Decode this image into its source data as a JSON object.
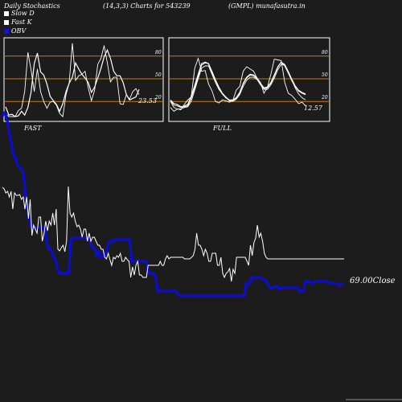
{
  "header": {
    "left": "Daily Stochastics",
    "params": "(14,3,3) Charts for 543239",
    "site": "(GMPL) munafasutra.in"
  },
  "legend": [
    {
      "label": "Slow  D",
      "color": "#ffffff"
    },
    {
      "label": "Fast K",
      "color": "#ffffff"
    },
    {
      "label": "OBV",
      "color": "#1010ee"
    }
  ],
  "colors": {
    "background": "#1c1c1c",
    "obv": "#0b0bdc",
    "close": "#ffffff",
    "band": "#c87a10"
  },
  "chart_data": [
    {
      "type": "line",
      "title": "FAST",
      "value_label": "23.53",
      "ylim": [
        0,
        100
      ],
      "levels": [
        80,
        50,
        20
      ],
      "series": [
        {
          "values": [
            13,
            2,
            3,
            0,
            1,
            7,
            2,
            12,
            32,
            70,
            84,
            59,
            55,
            43,
            27,
            21,
            16,
            7,
            17,
            33,
            44,
            52,
            71,
            63,
            56,
            51,
            45,
            32,
            39,
            51,
            64,
            79,
            88,
            77,
            60,
            54,
            54,
            45,
            29,
            22,
            24,
            26,
            36
          ]
        },
        {
          "values": [
            5,
            0,
            0,
            0,
            8,
            11,
            33,
            85,
            62,
            33,
            63,
            33,
            20,
            11,
            19,
            20,
            15,
            4,
            0,
            29,
            44,
            97,
            48,
            54,
            56,
            60,
            38,
            21,
            35,
            69,
            77,
            94,
            71,
            46,
            52,
            52,
            17,
            16,
            29,
            23,
            33,
            37,
            29
          ]
        }
      ]
    },
    {
      "type": "line",
      "title": "FULL",
      "value_label": "12.57",
      "ylim": [
        0,
        100
      ],
      "levels": [
        80,
        50,
        20
      ],
      "series": [
        {
          "values": [
            22,
            17,
            16,
            13,
            14,
            16,
            27,
            41,
            56,
            70,
            72,
            70,
            58,
            48,
            38,
            30,
            25,
            22,
            22,
            25,
            32,
            44,
            52,
            56,
            55,
            51,
            44,
            38,
            39,
            45,
            55,
            66,
            72,
            67,
            58,
            48,
            40,
            34,
            31,
            29
          ]
        },
        {
          "values": [
            21,
            15,
            14,
            12,
            13,
            14,
            24,
            38,
            53,
            68,
            71,
            70,
            60,
            49,
            39,
            31,
            26,
            22,
            21,
            24,
            31,
            43,
            51,
            55,
            54,
            50,
            43,
            37,
            38,
            44,
            54,
            65,
            72,
            69,
            60,
            50,
            41,
            35,
            32,
            30
          ]
        },
        {
          "values": [
            20,
            12,
            10,
            10,
            12,
            13,
            20,
            35,
            50,
            64,
            67,
            67,
            56,
            45,
            36,
            30,
            25,
            21,
            20,
            23,
            29,
            40,
            48,
            52,
            52,
            49,
            42,
            36,
            36,
            42,
            51,
            62,
            69,
            68,
            59,
            49,
            38,
            30,
            25,
            22
          ]
        },
        {
          "values": [
            12,
            7,
            10,
            9,
            16,
            22,
            26,
            64,
            77,
            60,
            61,
            43,
            34,
            20,
            18,
            22,
            21,
            19,
            21,
            35,
            40,
            60,
            66,
            63,
            60,
            51,
            45,
            31,
            39,
            56,
            76,
            75,
            74,
            45,
            31,
            28,
            23,
            17,
            19,
            14
          ]
        }
      ]
    },
    {
      "type": "line",
      "close_label": "69.00Close",
      "series": [
        {
          "name": "OBV",
          "values": [
            145,
            140,
            142,
            155,
            170,
            180,
            193,
            195,
            205,
            207,
            210,
            212,
            230,
            255,
            268,
            280,
            283,
            283,
            283,
            283,
            283,
            283,
            283,
            283,
            300,
            310,
            310,
            315,
            320,
            325,
            336,
            340,
            340,
            340,
            340,
            340,
            340,
            298,
            296,
            296,
            296,
            296,
            296,
            296,
            296,
            296,
            296,
            296,
            306,
            307,
            310,
            318,
            312,
            320,
            320,
            315,
            316,
            306,
            300,
            300,
            300,
            298,
            298,
            298,
            298,
            298,
            298,
            298,
            298,
            298,
            325,
            325,
            325,
            325,
            325,
            325,
            325,
            325,
            325,
            340,
            340,
            340,
            340,
            345,
            362,
            362,
            362,
            362,
            362,
            362,
            362,
            362,
            362,
            362,
            362,
            365,
            368,
            368,
            368,
            368,
            368,
            368,
            368,
            368,
            368,
            368,
            368,
            368,
            368,
            368,
            368,
            368,
            368,
            368,
            368,
            368,
            368,
            368,
            368,
            368,
            368,
            368,
            368,
            368,
            368,
            368,
            368,
            368,
            368,
            368,
            368,
            368,
            352,
            352,
            352,
            345,
            345,
            345,
            345,
            345,
            345,
            348,
            348,
            350,
            355,
            358,
            358,
            358,
            356,
            356,
            360,
            358,
            358,
            358,
            358,
            358,
            358,
            358,
            358,
            358,
            358,
            363,
            362,
            362,
            350,
            350,
            350,
            352,
            352,
            350,
            350,
            350,
            350,
            350,
            350,
            350,
            350,
            352,
            352,
            352,
            352,
            353,
            355,
            355,
            353,
            353
          ]
        },
        {
          "name": "Close",
          "values": [
            233,
            235,
            240,
            238,
            245,
            238,
            260,
            240,
            243,
            243,
            242,
            248,
            245,
            260,
            245,
            272,
            248,
            293,
            280,
            285,
            290,
            270,
            270,
            300,
            290,
            275,
            287,
            275,
            280,
            265,
            280,
            260,
            310,
            312,
            308,
            305,
            313,
            300,
            232,
            265,
            270,
            265,
            275,
            282,
            280,
            285,
            295,
            285,
            285,
            300,
            290,
            300,
            295,
            295,
            300,
            305,
            305,
            310,
            310,
            320,
            322,
            315,
            323,
            330,
            320,
            322,
            318,
            320,
            315,
            325,
            325,
            320,
            323,
            325,
            345,
            332,
            342,
            330,
            325,
            342,
            342,
            345,
            345,
            345,
            330,
            330,
            330,
            330,
            330,
            330,
            330,
            325,
            330,
            330,
            322,
            318,
            322,
            320,
            320,
            320,
            320,
            320,
            320,
            320,
            320,
            322,
            322,
            322,
            322,
            320,
            318,
            310,
            290,
            305,
            305,
            310,
            318,
            310,
            315,
            325,
            325,
            315,
            315,
            315,
            330,
            330,
            320,
            340,
            345,
            340,
            338,
            334,
            350,
            335,
            340,
            320,
            320,
            320,
            320,
            320,
            320,
            325,
            330,
            305,
            318,
            302,
            296,
            280,
            295,
            290,
            300,
            315,
            320,
            322,
            322,
            322,
            322,
            322,
            322,
            322,
            322,
            322,
            322,
            322,
            322,
            322,
            322,
            322,
            322,
            322,
            322,
            322,
            322,
            322,
            322,
            322,
            322,
            322,
            322,
            322,
            322,
            322,
            322,
            322,
            322,
            322,
            322,
            322,
            322,
            322,
            322,
            322,
            322,
            322,
            322,
            322,
            322,
            322
          ]
        }
      ]
    }
  ]
}
